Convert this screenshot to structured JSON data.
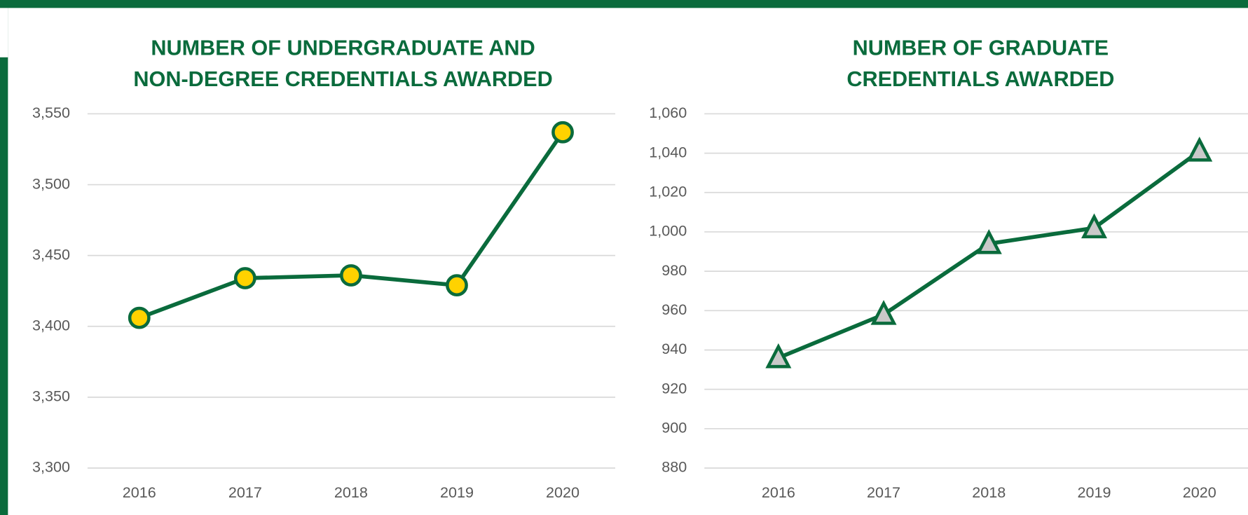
{
  "chart_data": [
    {
      "type": "line",
      "title": [
        "NUMBER OF UNDERGRADUATE AND",
        "NON-DEGREE CREDENTIALS AWARDED"
      ],
      "categories": [
        "2016",
        "2017",
        "2018",
        "2019",
        "2020"
      ],
      "values": [
        3406,
        3434,
        3436,
        3429,
        3537
      ],
      "color": "#0a6b3c",
      "marker": "circle",
      "marker_fill": "#ffd200",
      "ylim": [
        3300,
        3550
      ],
      "yticks": [
        {
          "value": 3300,
          "label": "3,300"
        },
        {
          "value": 3350,
          "label": "3,350"
        },
        {
          "value": 3400,
          "label": "3,400"
        },
        {
          "value": 3450,
          "label": "3,450"
        },
        {
          "value": 3500,
          "label": "3,500"
        },
        {
          "value": 3550,
          "label": "3,550"
        }
      ],
      "grid": true
    },
    {
      "type": "line",
      "title": [
        "NUMBER OF GRADUATE",
        "CREDENTIALS AWARDED"
      ],
      "categories": [
        "2016",
        "2017",
        "2018",
        "2019",
        "2020"
      ],
      "values": [
        936,
        958,
        994,
        1002,
        1041
      ],
      "color": "#0a6b3c",
      "marker": "triangle",
      "marker_fill": "#c9c9c9",
      "ylim": [
        880,
        1060
      ],
      "yticks": [
        880,
        900,
        920,
        940,
        960,
        980,
        {
          "value": 1000,
          "label": "1,000"
        },
        {
          "value": 1020,
          "label": "1,020"
        },
        {
          "value": 1040,
          "label": "1,040"
        },
        {
          "value": 1060,
          "label": "1,060"
        }
      ],
      "grid": true
    }
  ]
}
